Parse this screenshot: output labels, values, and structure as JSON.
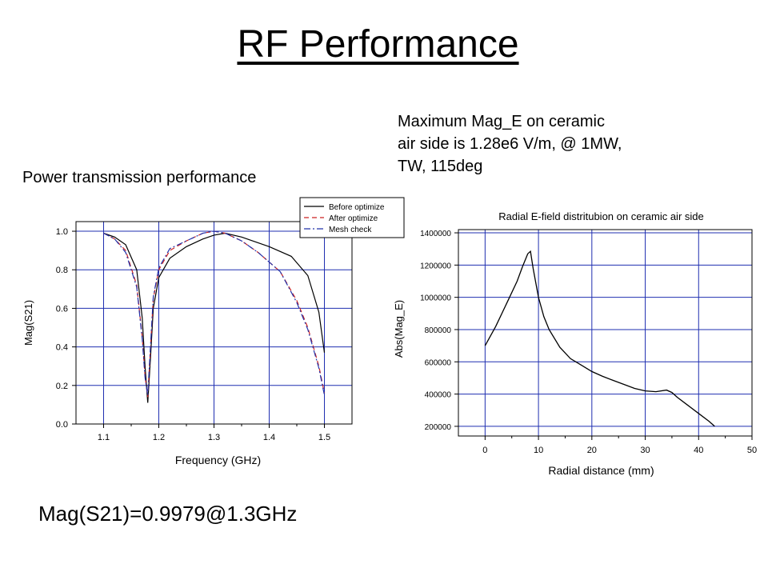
{
  "slide_title": "RF Performance",
  "left_caption": "Power transmission performance",
  "right_caption": [
    "Maximum Mag_E on ceramic",
    "air side is 1.28e6 V/m, @ 1MW,",
    "TW, 115deg"
  ],
  "footer_text": "Mag(S21)=0.9979@1.3GHz",
  "colors": {
    "grid": "#1f2fb0",
    "before": "#000000",
    "after": "#cc2222",
    "mesh": "#2233aa"
  },
  "chart_data": [
    {
      "type": "line",
      "title": "",
      "xlabel": "Frequency (GHz)",
      "ylabel": "Mag(S21)",
      "xlim": [
        1.05,
        1.55
      ],
      "ylim": [
        0.0,
        1.05
      ],
      "xticks": [
        "1.1",
        "1.2",
        "1.3",
        "1.4",
        "1.5"
      ],
      "yticks": [
        "0.0",
        "0.2",
        "0.4",
        "0.6",
        "0.8",
        "1.0"
      ],
      "grid": true,
      "legend": "top-right",
      "series": [
        {
          "name": "Before optimize",
          "style": "solid",
          "x": [
            1.1,
            1.12,
            1.14,
            1.16,
            1.17,
            1.175,
            1.18,
            1.185,
            1.19,
            1.2,
            1.22,
            1.25,
            1.28,
            1.3,
            1.32,
            1.35,
            1.4,
            1.44,
            1.47,
            1.49,
            1.5
          ],
          "y": [
            0.99,
            0.97,
            0.93,
            0.8,
            0.55,
            0.3,
            0.11,
            0.35,
            0.6,
            0.76,
            0.86,
            0.92,
            0.96,
            0.98,
            0.99,
            0.97,
            0.92,
            0.87,
            0.77,
            0.58,
            0.37
          ]
        },
        {
          "name": "After optimize",
          "style": "dashed",
          "x": [
            1.1,
            1.12,
            1.14,
            1.16,
            1.17,
            1.175,
            1.18,
            1.185,
            1.19,
            1.2,
            1.22,
            1.25,
            1.28,
            1.3,
            1.32,
            1.35,
            1.38,
            1.42,
            1.45,
            1.47,
            1.49,
            1.5
          ],
          "y": [
            0.99,
            0.96,
            0.9,
            0.72,
            0.45,
            0.25,
            0.14,
            0.4,
            0.65,
            0.8,
            0.9,
            0.95,
            0.99,
            1.0,
            0.99,
            0.95,
            0.89,
            0.79,
            0.64,
            0.5,
            0.3,
            0.16
          ]
        },
        {
          "name": "Mesh check",
          "style": "dashdot",
          "x": [
            1.1,
            1.12,
            1.14,
            1.16,
            1.17,
            1.175,
            1.18,
            1.185,
            1.19,
            1.2,
            1.22,
            1.25,
            1.28,
            1.3,
            1.32,
            1.35,
            1.38,
            1.42,
            1.45,
            1.47,
            1.49,
            1.5
          ],
          "y": [
            0.99,
            0.96,
            0.89,
            0.71,
            0.44,
            0.24,
            0.15,
            0.41,
            0.66,
            0.81,
            0.91,
            0.95,
            0.99,
            1.0,
            0.99,
            0.95,
            0.89,
            0.79,
            0.63,
            0.49,
            0.29,
            0.15
          ]
        }
      ]
    },
    {
      "type": "line",
      "title": "Radial E-field distritubion on ceramic air side",
      "xlabel": "Radial distance (mm)",
      "ylabel": "Abs(Mag_E)",
      "xlim": [
        -5,
        50
      ],
      "ylim": [
        140000,
        1420000
      ],
      "xticks": [
        "0",
        "10",
        "20",
        "30",
        "40",
        "50"
      ],
      "yticks": [
        "200000",
        "400000",
        "600000",
        "800000",
        "1000000",
        "1200000",
        "1400000"
      ],
      "grid": true,
      "series": [
        {
          "style": "solid",
          "x": [
            0,
            2,
            4,
            6,
            7,
            8,
            8.5,
            9,
            10,
            11,
            12,
            14,
            16,
            18,
            20,
            22,
            24,
            26,
            28,
            30,
            32,
            34,
            35,
            36,
            38,
            40,
            42,
            43
          ],
          "y": [
            700000,
            820000,
            960000,
            1100000,
            1190000,
            1270000,
            1285000,
            1180000,
            1000000,
            880000,
            800000,
            690000,
            620000,
            580000,
            540000,
            510000,
            485000,
            460000,
            435000,
            420000,
            415000,
            425000,
            410000,
            380000,
            330000,
            280000,
            230000,
            200000
          ]
        }
      ]
    }
  ]
}
